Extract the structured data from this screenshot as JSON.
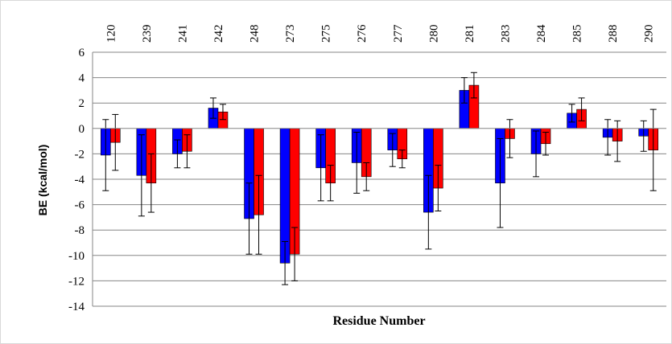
{
  "chart_data": {
    "type": "bar",
    "title": "",
    "xlabel": "Residue Number",
    "ylabel": "BE (kcal/mol)",
    "ylim": [
      -14,
      6
    ],
    "ytick_step": 2,
    "grid": true,
    "legend": "none",
    "categories": [
      "120",
      "239",
      "241",
      "242",
      "248",
      "273",
      "275",
      "276",
      "277",
      "280",
      "281",
      "283",
      "284",
      "285",
      "288",
      "290"
    ],
    "series": [
      {
        "color": "#0000ff",
        "values": [
          -2.1,
          -3.7,
          -2.0,
          1.6,
          -7.1,
          -10.6,
          -3.1,
          -2.7,
          -1.7,
          -6.6,
          3.0,
          -4.3,
          -2.0,
          1.2,
          -0.7,
          -0.6
        ],
        "errors": [
          2.8,
          3.2,
          1.1,
          0.8,
          2.8,
          1.7,
          2.6,
          2.4,
          1.3,
          2.9,
          1.0,
          3.5,
          1.8,
          0.7,
          1.4,
          1.2
        ]
      },
      {
        "color": "#ff0000",
        "values": [
          -1.1,
          -4.3,
          -1.8,
          1.3,
          -6.8,
          -9.9,
          -4.3,
          -3.8,
          -2.4,
          -4.7,
          3.4,
          -0.8,
          -1.2,
          1.5,
          -1.0,
          -1.7
        ],
        "errors": [
          2.2,
          2.3,
          1.3,
          0.6,
          3.1,
          2.1,
          1.4,
          1.1,
          0.7,
          1.8,
          1.0,
          1.5,
          0.9,
          0.9,
          1.6,
          3.2
        ]
      }
    ]
  }
}
